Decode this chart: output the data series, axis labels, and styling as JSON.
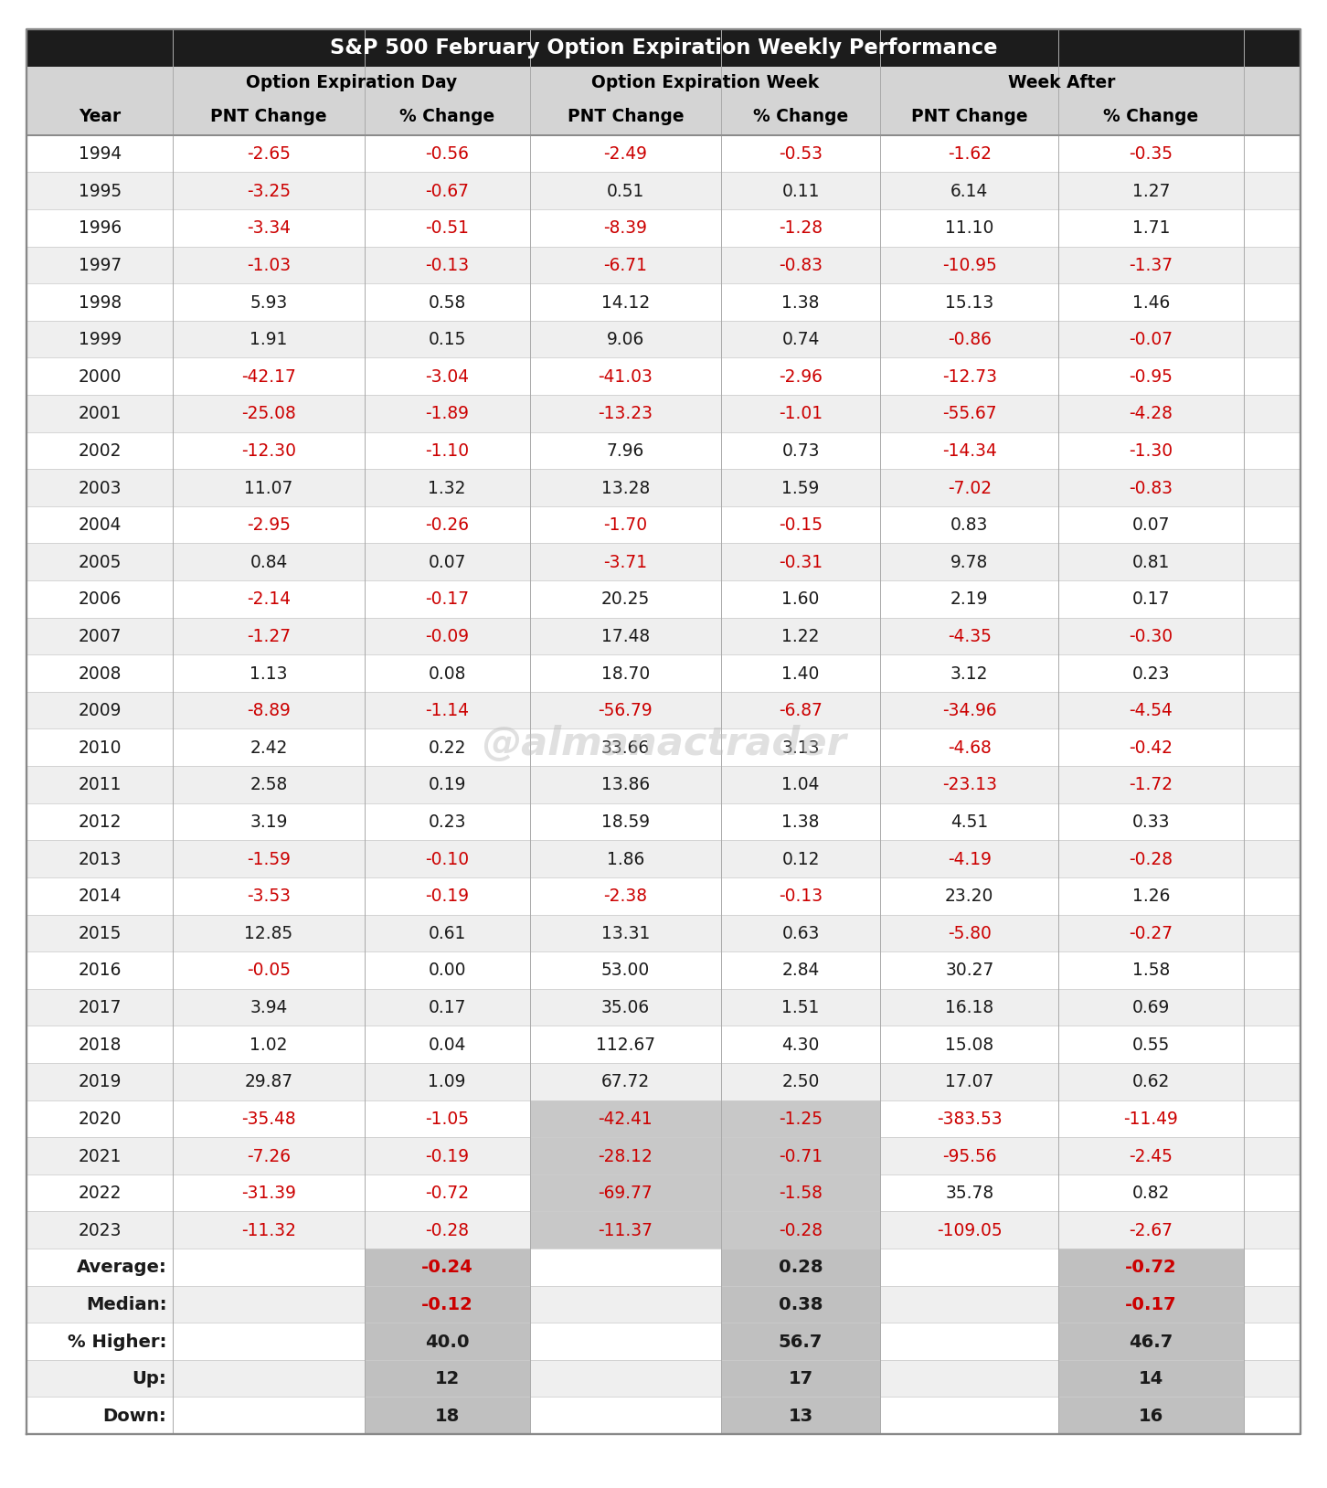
{
  "title": "S&P 500 February Option Expiration Weekly Performance",
  "col_headers_row1": [
    "",
    "Option Expiration Day",
    "",
    "Option Expiration Week",
    "",
    "Week After",
    ""
  ],
  "col_headers_row2": [
    "Year",
    "PNT Change",
    "% Change",
    "PNT Change",
    "% Change",
    "PNT Change",
    "% Change"
  ],
  "rows": [
    [
      "1994",
      "-2.65",
      "-0.56",
      "-2.49",
      "-0.53",
      "-1.62",
      "-0.35"
    ],
    [
      "1995",
      "-3.25",
      "-0.67",
      "0.51",
      "0.11",
      "6.14",
      "1.27"
    ],
    [
      "1996",
      "-3.34",
      "-0.51",
      "-8.39",
      "-1.28",
      "11.10",
      "1.71"
    ],
    [
      "1997",
      "-1.03",
      "-0.13",
      "-6.71",
      "-0.83",
      "-10.95",
      "-1.37"
    ],
    [
      "1998",
      "5.93",
      "0.58",
      "14.12",
      "1.38",
      "15.13",
      "1.46"
    ],
    [
      "1999",
      "1.91",
      "0.15",
      "9.06",
      "0.74",
      "-0.86",
      "-0.07"
    ],
    [
      "2000",
      "-42.17",
      "-3.04",
      "-41.03",
      "-2.96",
      "-12.73",
      "-0.95"
    ],
    [
      "2001",
      "-25.08",
      "-1.89",
      "-13.23",
      "-1.01",
      "-55.67",
      "-4.28"
    ],
    [
      "2002",
      "-12.30",
      "-1.10",
      "7.96",
      "0.73",
      "-14.34",
      "-1.30"
    ],
    [
      "2003",
      "11.07",
      "1.32",
      "13.28",
      "1.59",
      "-7.02",
      "-0.83"
    ],
    [
      "2004",
      "-2.95",
      "-0.26",
      "-1.70",
      "-0.15",
      "0.83",
      "0.07"
    ],
    [
      "2005",
      "0.84",
      "0.07",
      "-3.71",
      "-0.31",
      "9.78",
      "0.81"
    ],
    [
      "2006",
      "-2.14",
      "-0.17",
      "20.25",
      "1.60",
      "2.19",
      "0.17"
    ],
    [
      "2007",
      "-1.27",
      "-0.09",
      "17.48",
      "1.22",
      "-4.35",
      "-0.30"
    ],
    [
      "2008",
      "1.13",
      "0.08",
      "18.70",
      "1.40",
      "3.12",
      "0.23"
    ],
    [
      "2009",
      "-8.89",
      "-1.14",
      "-56.79",
      "-6.87",
      "-34.96",
      "-4.54"
    ],
    [
      "2010",
      "2.42",
      "0.22",
      "33.66",
      "3.13",
      "-4.68",
      "-0.42"
    ],
    [
      "2011",
      "2.58",
      "0.19",
      "13.86",
      "1.04",
      "-23.13",
      "-1.72"
    ],
    [
      "2012",
      "3.19",
      "0.23",
      "18.59",
      "1.38",
      "4.51",
      "0.33"
    ],
    [
      "2013",
      "-1.59",
      "-0.10",
      "1.86",
      "0.12",
      "-4.19",
      "-0.28"
    ],
    [
      "2014",
      "-3.53",
      "-0.19",
      "-2.38",
      "-0.13",
      "23.20",
      "1.26"
    ],
    [
      "2015",
      "12.85",
      "0.61",
      "13.31",
      "0.63",
      "-5.80",
      "-0.27"
    ],
    [
      "2016",
      "-0.05",
      "0.00",
      "53.00",
      "2.84",
      "30.27",
      "1.58"
    ],
    [
      "2017",
      "3.94",
      "0.17",
      "35.06",
      "1.51",
      "16.18",
      "0.69"
    ],
    [
      "2018",
      "1.02",
      "0.04",
      "112.67",
      "4.30",
      "15.08",
      "0.55"
    ],
    [
      "2019",
      "29.87",
      "1.09",
      "67.72",
      "2.50",
      "17.07",
      "0.62"
    ],
    [
      "2020",
      "-35.48",
      "-1.05",
      "-42.41",
      "-1.25",
      "-383.53",
      "-11.49"
    ],
    [
      "2021",
      "-7.26",
      "-0.19",
      "-28.12",
      "-0.71",
      "-95.56",
      "-2.45"
    ],
    [
      "2022",
      "-31.39",
      "-0.72",
      "-69.77",
      "-1.58",
      "35.78",
      "0.82"
    ],
    [
      "2023",
      "-11.32",
      "-0.28",
      "-11.37",
      "-0.28",
      "-109.05",
      "-2.67"
    ]
  ],
  "summary_rows": [
    [
      "Average:",
      "",
      "-0.24",
      "",
      "0.28",
      "",
      "-0.72"
    ],
    [
      "Median:",
      "",
      "-0.12",
      "",
      "0.38",
      "",
      "-0.17"
    ],
    [
      "% Higher:",
      "",
      "40.0",
      "",
      "56.7",
      "",
      "46.7"
    ],
    [
      "Up:",
      "",
      "12",
      "",
      "17",
      "",
      "14"
    ],
    [
      "Down:",
      "",
      "18",
      "",
      "13",
      "",
      "16"
    ]
  ],
  "shaded_rows_oew": [
    26,
    27,
    28,
    29
  ],
  "title_bg": "#1c1c1c",
  "title_fg": "#ffffff",
  "header1_bg": "#d4d4d4",
  "header2_bg": "#d4d4d4",
  "header_fg": "#000000",
  "row_bg_white": "#ffffff",
  "row_bg_gray": "#efefef",
  "neg_color": "#cc0000",
  "pos_color": "#1a1a1a",
  "shaded_cell_bg": "#c8c8c8",
  "summary_shaded_bg": "#c0c0c0",
  "watermark": "@almanactrader"
}
